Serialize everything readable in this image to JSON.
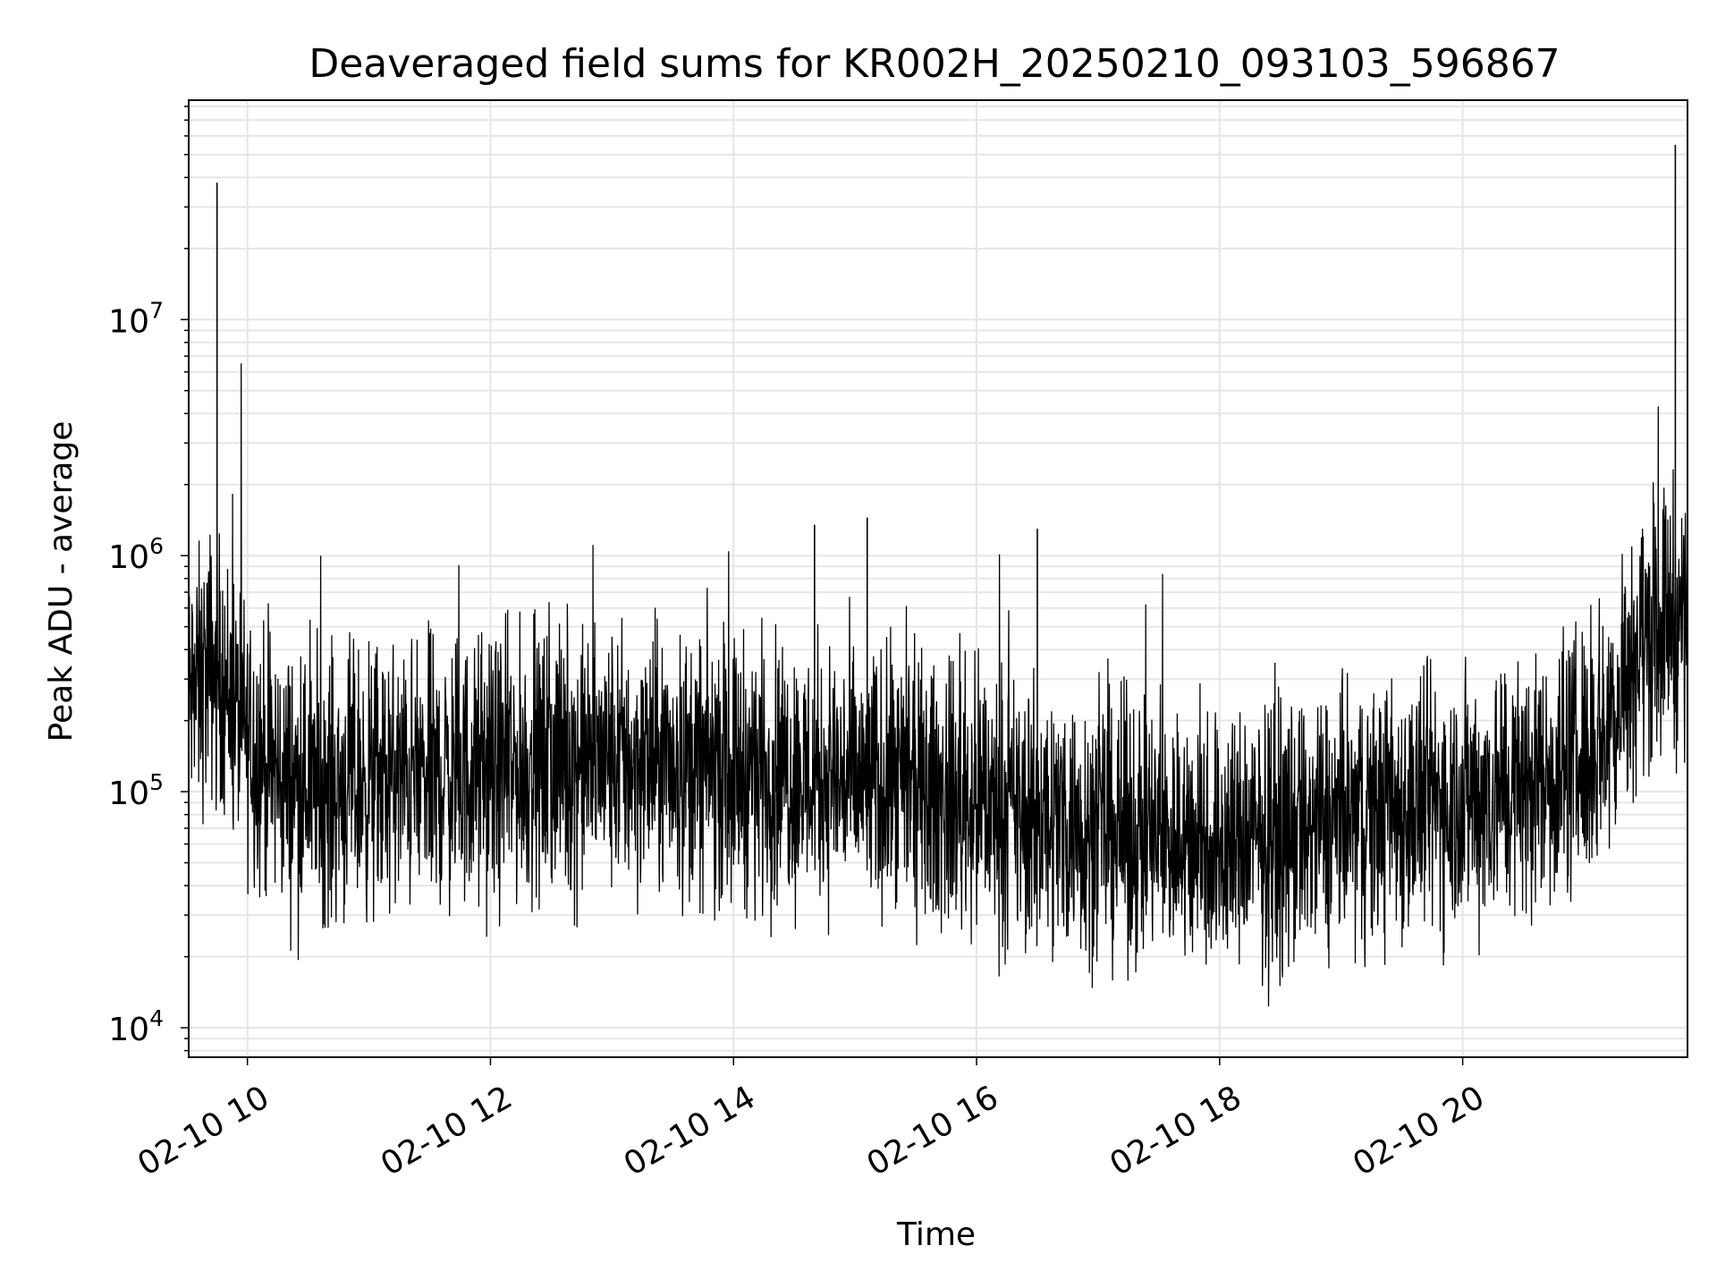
{
  "chart_data": {
    "type": "line",
    "title": "Deaveraged field sums for KR002H_20250210_093103_596867",
    "xlabel": "Time",
    "ylabel": "Peak ADU - average",
    "x_scale": "time",
    "y_scale": "log",
    "xlim": [
      "2025-02-10 09:31",
      "2025-02-10 21:51"
    ],
    "ylim": [
      7500,
      85000000
    ],
    "grid": true,
    "legend": "none",
    "line_color": "#000000",
    "grid_color": "#e6e6e6",
    "x_ticks": [
      {
        "t": "2025-02-10 10:00",
        "label": "02-10 10"
      },
      {
        "t": "2025-02-10 12:00",
        "label": "02-10 12"
      },
      {
        "t": "2025-02-10 14:00",
        "label": "02-10 14"
      },
      {
        "t": "2025-02-10 16:00",
        "label": "02-10 16"
      },
      {
        "t": "2025-02-10 18:00",
        "label": "02-10 18"
      },
      {
        "t": "2025-02-10 20:00",
        "label": "02-10 20"
      }
    ],
    "y_ticks": [
      {
        "value": 10000,
        "base": "10",
        "exp": "4"
      },
      {
        "value": 100000,
        "base": "10",
        "exp": "5"
      },
      {
        "value": 1000000,
        "base": "10",
        "exp": "6"
      },
      {
        "value": 10000000,
        "base": "10",
        "exp": "7"
      }
    ],
    "series": [
      {
        "x": [
          "2025-02-10 09:31",
          "2025-02-10 09:36",
          "2025-02-10 09:42",
          "2025-02-10 09:45",
          "2025-02-10 09:48",
          "2025-02-10 09:54",
          "2025-02-10 10:00",
          "2025-02-10 10:10",
          "2025-02-10 10:20",
          "2025-02-10 10:40",
          "2025-02-10 11:00",
          "2025-02-10 11:30",
          "2025-02-10 12:00",
          "2025-02-10 12:30",
          "2025-02-10 13:00",
          "2025-02-10 13:30",
          "2025-02-10 14:00",
          "2025-02-10 14:30",
          "2025-02-10 14:40",
          "2025-02-10 15:00",
          "2025-02-10 15:06",
          "2025-02-10 15:30",
          "2025-02-10 16:00",
          "2025-02-10 16:20",
          "2025-02-10 16:30",
          "2025-02-10 17:00",
          "2025-02-10 17:30",
          "2025-02-10 18:00",
          "2025-02-10 18:30",
          "2025-02-10 19:00",
          "2025-02-10 19:30",
          "2025-02-10 20:00",
          "2025-02-10 20:30",
          "2025-02-10 21:00",
          "2025-02-10 21:15",
          "2025-02-10 21:25",
          "2025-02-10 21:35",
          "2025-02-10 21:45",
          "2025-02-10 21:51"
        ],
        "y": [
          250000,
          280000,
          350000,
          38000000,
          300000,
          220000,
          170000,
          130000,
          110000,
          105000,
          110000,
          115000,
          120000,
          130000,
          135000,
          130000,
          125000,
          120000,
          1350000,
          110000,
          1450000,
          100000,
          90000,
          80000,
          1300000,
          70000,
          65000,
          60000,
          65000,
          75000,
          85000,
          95000,
          105000,
          140000,
          220000,
          400000,
          500000,
          55000000,
          600000
        ]
      }
    ]
  }
}
